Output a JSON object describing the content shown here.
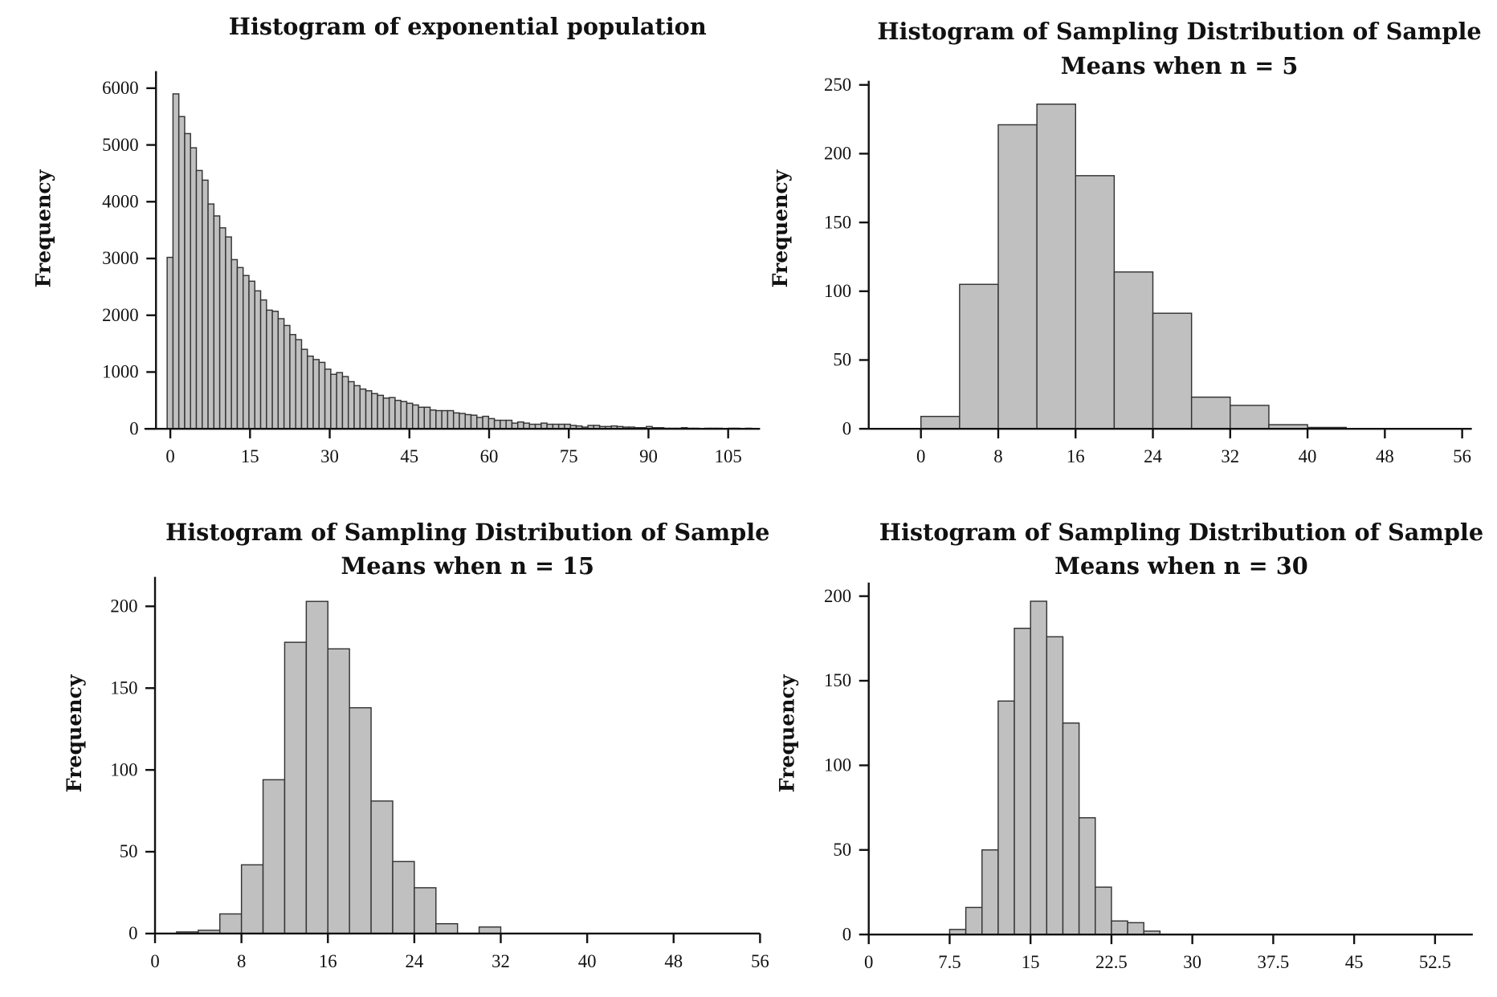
{
  "colors": {
    "bar_fill": "#c0c0c0",
    "bar_edge": "#333333",
    "axis": "#111111"
  },
  "chart_data": [
    {
      "type": "bar",
      "title": [
        "Histogram of exponential population"
      ],
      "ylabel": "Frequency",
      "xlabel": "",
      "bin_start": -0.6,
      "bin_width": 1.1,
      "values": [
        3020,
        5900,
        5500,
        5200,
        4950,
        4550,
        4380,
        3960,
        3750,
        3540,
        3380,
        2980,
        2840,
        2700,
        2600,
        2430,
        2270,
        2090,
        2070,
        1940,
        1820,
        1660,
        1570,
        1400,
        1280,
        1220,
        1170,
        1050,
        960,
        990,
        920,
        830,
        760,
        700,
        670,
        620,
        590,
        540,
        550,
        500,
        480,
        450,
        420,
        380,
        380,
        330,
        320,
        320,
        320,
        280,
        270,
        250,
        240,
        200,
        220,
        180,
        150,
        150,
        150,
        100,
        120,
        100,
        80,
        80,
        100,
        80,
        80,
        80,
        80,
        60,
        50,
        30,
        60,
        60,
        40,
        40,
        50,
        40,
        30,
        30,
        20,
        20,
        40,
        20,
        20,
        10,
        10,
        10,
        20,
        10,
        10,
        0,
        10,
        10,
        10,
        0,
        10,
        10,
        0,
        10
      ],
      "xticks": [
        0,
        15,
        30,
        45,
        60,
        75,
        90,
        105
      ],
      "yticks": [
        0,
        1000,
        2000,
        3000,
        4000,
        5000,
        6000
      ],
      "xlim": [
        -2.7,
        111
      ],
      "ylim": [
        0,
        6300
      ],
      "grid": false
    },
    {
      "type": "bar",
      "title": [
        "Histogram of Sampling Distribution of Sample",
        "Means when n = 5"
      ],
      "ylabel": "Frequency",
      "xlabel": "",
      "bin_start": 0,
      "bin_width": 4,
      "values": [
        9,
        105,
        221,
        236,
        184,
        114,
        84,
        23,
        17,
        3,
        1
      ],
      "xticks": [
        0,
        8,
        16,
        24,
        32,
        40,
        48,
        56
      ],
      "yticks": [
        0,
        50,
        100,
        150,
        200,
        250
      ],
      "xlim": [
        -5.4,
        57
      ],
      "ylim": [
        0,
        253
      ],
      "grid": false
    },
    {
      "type": "bar",
      "title": [
        "Histogram of Sampling Distribution of Sample",
        "Means when n = 15"
      ],
      "ylabel": "Frequency",
      "xlabel": "",
      "bin_start": 2,
      "bin_width": 2,
      "values": [
        1,
        2,
        12,
        42,
        94,
        178,
        203,
        174,
        138,
        81,
        44,
        28,
        6,
        0,
        4
      ],
      "xticks": [
        0,
        8,
        16,
        24,
        32,
        40,
        48,
        56
      ],
      "yticks": [
        0,
        50,
        100,
        150,
        200
      ],
      "xlim": [
        0,
        56
      ],
      "ylim": [
        0,
        218
      ],
      "grid": false
    },
    {
      "type": "bar",
      "title": [
        "Histogram of Sampling Distribution of Sample",
        "Means when n = 30"
      ],
      "ylabel": "Frequency",
      "xlabel": "",
      "bin_start": 7.5,
      "bin_width": 1.5,
      "values": [
        3,
        16,
        50,
        138,
        181,
        197,
        176,
        125,
        69,
        28,
        8,
        7,
        2
      ],
      "xticks": [
        0,
        7.5,
        15,
        22.5,
        30,
        37.5,
        45,
        52.5
      ],
      "yticks": [
        0,
        50,
        100,
        150,
        200
      ],
      "xlim": [
        0,
        56
      ],
      "ylim": [
        0,
        208
      ],
      "grid": false
    }
  ]
}
